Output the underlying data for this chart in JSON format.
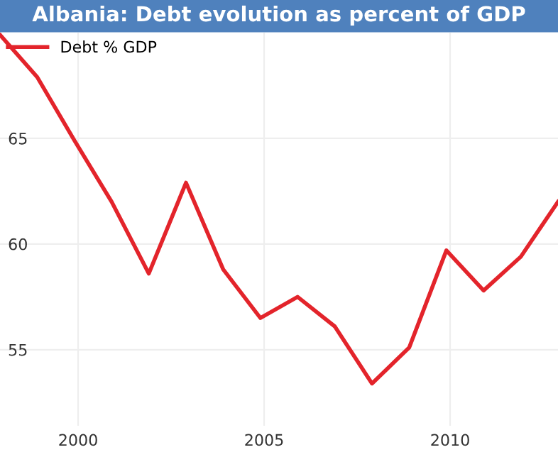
{
  "chart_data": {
    "type": "line",
    "title": "Albania: Debt evolution as percent of GDP",
    "x": [
      1997.9,
      1998.9,
      1999.9,
      2000.9,
      2001.9,
      2002.9,
      2003.9,
      2004.9,
      2005.9,
      2006.9,
      2007.9,
      2008.9,
      2009.9,
      2010.9,
      2011.9,
      2012.9
    ],
    "series": [
      {
        "name": "Debt % GDP",
        "color": "#e3242b",
        "values": [
          69.9,
          67.9,
          64.9,
          62.0,
          58.6,
          62.9,
          58.8,
          56.5,
          57.5,
          56.1,
          53.4,
          55.1,
          59.7,
          57.8,
          59.4,
          62.0
        ]
      }
    ],
    "xlim": [
      1997.9,
      2012.9
    ],
    "xticks": [
      2000,
      2005,
      2010
    ],
    "ylim": [
      51.4,
      70.0
    ],
    "yticks": [
      55,
      60,
      65
    ],
    "grid": true,
    "legend": "top left",
    "marker": "none",
    "line_style": "solid"
  }
}
